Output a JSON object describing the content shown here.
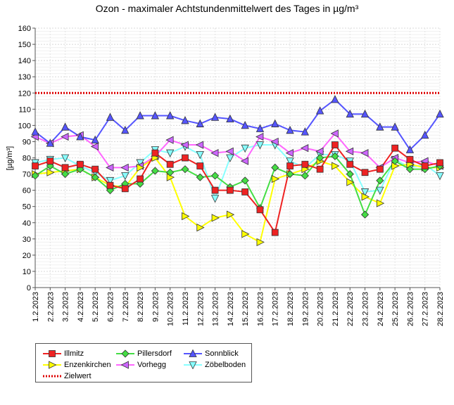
{
  "chart_data": {
    "type": "line",
    "title": "Ozon -  maximaler Achtstundenmittelwert des Tages in µg/m³",
    "ylabel": "[µg/m³]",
    "xlabel": "",
    "ylim": [
      0,
      160
    ],
    "yticks": [
      0,
      10,
      20,
      30,
      40,
      50,
      60,
      70,
      80,
      90,
      100,
      110,
      120,
      130,
      140,
      150,
      160
    ],
    "grid": true,
    "legend_position": "bottom-left",
    "categories": [
      "1.2.2023",
      "2.2.2023",
      "3.2.2023",
      "4.2.2023",
      "5.2.2023",
      "6.2.2023",
      "7.2.2023",
      "8.2.2023",
      "9.2.2023",
      "10.2.2023",
      "11.2.2023",
      "12.2.2023",
      "13.2.2023",
      "14.2.2023",
      "15.2.2023",
      "16.2.2023",
      "17.2.2023",
      "18.2.2023",
      "19.2.2023",
      "20.2.2023",
      "21.2.2023",
      "22.2.2023",
      "23.2.2023",
      "24.2.2023",
      "25.2.2023",
      "26.2.2023",
      "27.2.2023",
      "28.2.2023"
    ],
    "series": [
      {
        "name": "Illmitz",
        "color": "#ee2222",
        "marker": "square",
        "marker_fill": "#ee2222",
        "values": [
          75,
          78,
          74,
          76,
          73,
          63,
          61,
          67,
          83,
          76,
          80,
          75,
          60,
          60,
          59,
          48,
          34,
          75,
          76,
          73,
          88,
          76,
          71,
          73,
          86,
          79,
          75,
          77
        ]
      },
      {
        "name": "Enzenkirchen",
        "color": "#ffff00",
        "marker": "triangle-right",
        "marker_fill": "#ffff00",
        "values": [
          70,
          71,
          72,
          73,
          68,
          63,
          62,
          74,
          80,
          68,
          44,
          37,
          43,
          45,
          33,
          28,
          67,
          70,
          73,
          78,
          75,
          65,
          56,
          52,
          75,
          76,
          74,
          74
        ]
      },
      {
        "name": "Pillersdorf",
        "color": "#44dd44",
        "marker": "diamond",
        "marker_fill": "#44dd44",
        "values": [
          69,
          75,
          70,
          73,
          68,
          60,
          64,
          64,
          72,
          71,
          73,
          68,
          69,
          62,
          66,
          49,
          74,
          70,
          69,
          80,
          81,
          70,
          45,
          66,
          78,
          73,
          73,
          75
        ]
      },
      {
        "name": "Vorhegg",
        "color": "#ff66ff",
        "marker": "triangle-left",
        "marker_fill": "#cc66ff",
        "values": [
          93,
          89,
          93,
          94,
          87,
          74,
          74,
          75,
          81,
          91,
          88,
          88,
          83,
          84,
          78,
          93,
          90,
          83,
          86,
          84,
          95,
          84,
          83,
          74,
          80,
          77,
          78,
          75
        ]
      },
      {
        "name": "Sonnblick",
        "color": "#5555ff",
        "marker": "triangle-up",
        "marker_fill": "#5555ff",
        "values": [
          96,
          89,
          99,
          93,
          91,
          105,
          97,
          106,
          106,
          106,
          103,
          101,
          105,
          104,
          100,
          98,
          101,
          97,
          96,
          109,
          116,
          107,
          107,
          99,
          99,
          85,
          94,
          107
        ]
      },
      {
        "name": "Zöbelboden",
        "color": "#88ffff",
        "marker": "triangle-down",
        "marker_fill": "#88ffff",
        "values": [
          77,
          79,
          80,
          75,
          71,
          66,
          69,
          77,
          85,
          83,
          87,
          82,
          55,
          80,
          86,
          88,
          88,
          78,
          74,
          82,
          82,
          78,
          59,
          60,
          79,
          74,
          76,
          69
        ]
      }
    ],
    "reference_lines": [
      {
        "name": "Zielwert",
        "value": 120,
        "color": "#dd0000",
        "style": "dotted"
      }
    ]
  }
}
